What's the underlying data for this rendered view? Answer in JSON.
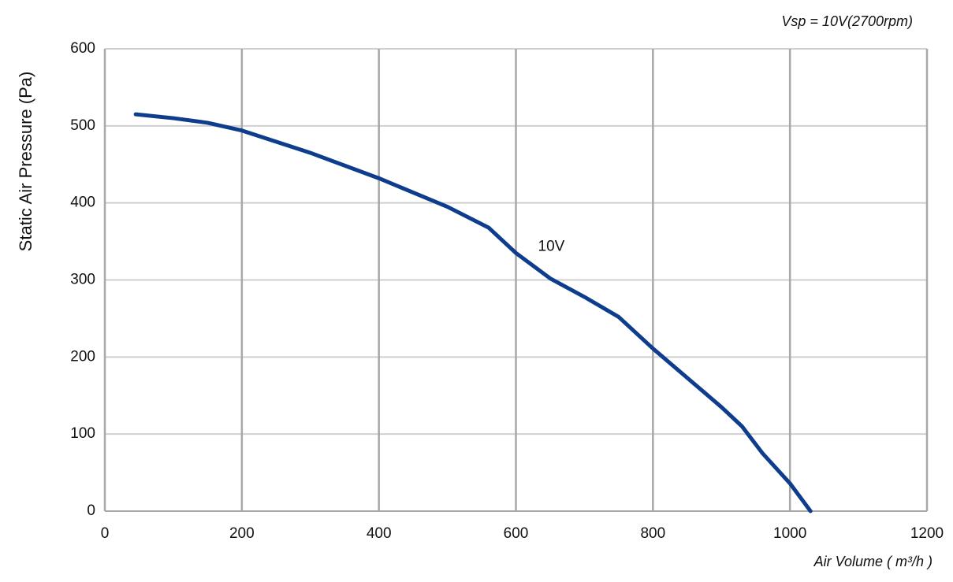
{
  "chart_data": {
    "type": "line",
    "subtitle": "Vsp = 10V(2700rpm)",
    "x_label": "Air Volume ( m³/h )",
    "y_label": "Static Air Pressure  (Pa)",
    "x": [
      45,
      100,
      150,
      200,
      300,
      400,
      500,
      560,
      600,
      650,
      700,
      750,
      800,
      850,
      900,
      930,
      960,
      1000,
      1030
    ],
    "series": [
      {
        "name": "10V",
        "color": "#0d3d8c",
        "values": [
          515,
          510,
          504,
          494,
          465,
          432,
          395,
          368,
          335,
          302,
          278,
          252,
          211,
          173,
          135,
          110,
          75,
          36,
          0
        ]
      }
    ],
    "xlim": [
      0,
      1200
    ],
    "xticks": [
      0,
      200,
      400,
      600,
      800,
      1000,
      1200
    ],
    "ylim": [
      0,
      600
    ],
    "yticks": [
      0,
      100,
      200,
      300,
      400,
      500,
      600
    ],
    "grid": true
  }
}
